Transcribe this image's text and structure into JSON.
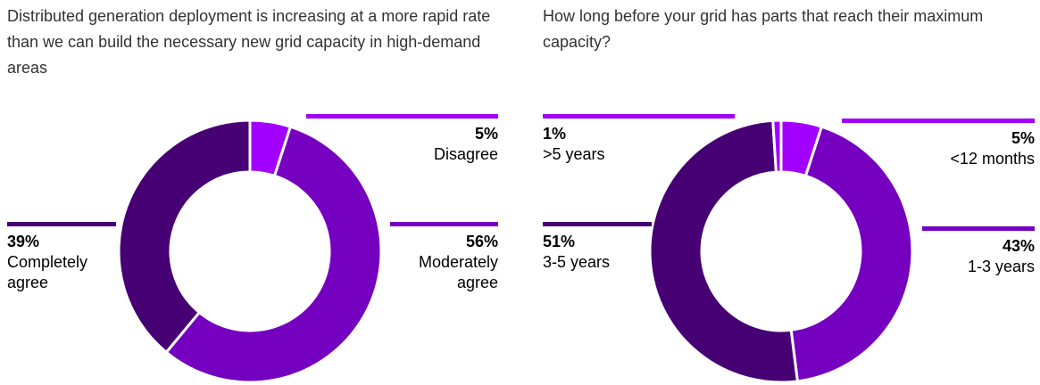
{
  "colors": {
    "light": "#A100FF",
    "medium": "#7500C0",
    "dark": "#460073",
    "gap": "#ffffff"
  },
  "chart_data": [
    {
      "type": "pie",
      "title": "Distributed generation deployment is increasing at a more rapid rate than we can build the necessary new grid capacity in high-demand areas",
      "slices": [
        {
          "label": "Disagree",
          "value": 5,
          "pct_label": "5%",
          "color": "#A100FF"
        },
        {
          "label": "Moderately agree",
          "value": 56,
          "pct_label": "56%",
          "color": "#7500C0"
        },
        {
          "label": "Completely agree",
          "value": 39,
          "pct_label": "39%",
          "color": "#460073"
        }
      ]
    },
    {
      "type": "pie",
      "title": "How long before your grid has parts that reach their maximum capacity?",
      "slices": [
        {
          "label": "<12 months",
          "value": 5,
          "pct_label": "5%",
          "color": "#A100FF"
        },
        {
          "label": "1-3 years",
          "value": 43,
          "pct_label": "43%",
          "color": "#7500C0"
        },
        {
          "label": "3-5 years",
          "value": 51,
          "pct_label": "51%",
          "color": "#460073"
        },
        {
          "label": ">5 years",
          "value": 1,
          "pct_label": "1%",
          "color": "#A100FF"
        }
      ]
    }
  ]
}
